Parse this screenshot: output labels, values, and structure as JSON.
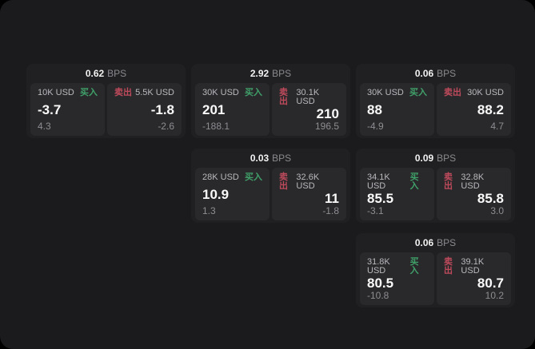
{
  "labels": {
    "bps_unit": "BPS",
    "buy": "买入",
    "sell": "卖出"
  },
  "colors": {
    "buy": "#40a06a",
    "sell": "#bf4a5c",
    "panel_bg": "#1b1b1d",
    "card_bg": "#202022",
    "subpanel_bg": "#29292b"
  },
  "cards": [
    {
      "grid": {
        "col": 1,
        "row": 1
      },
      "bps": "0.62",
      "buy": {
        "size": "10K USD",
        "value": "-3.7",
        "delta": "4.3"
      },
      "sell": {
        "size": "5.5K USD",
        "value": "-1.8",
        "delta": "-2.6"
      }
    },
    {
      "grid": {
        "col": 2,
        "row": 1
      },
      "bps": "2.92",
      "buy": {
        "size": "30K USD",
        "value": "201",
        "delta": "-188.1"
      },
      "sell": {
        "size": "30.1K USD",
        "value": "210",
        "delta": "196.5"
      }
    },
    {
      "grid": {
        "col": 3,
        "row": 1
      },
      "bps": "0.06",
      "buy": {
        "size": "30K USD",
        "value": "88",
        "delta": "-4.9"
      },
      "sell": {
        "size": "30K USD",
        "value": "88.2",
        "delta": "4.7"
      }
    },
    {
      "grid": {
        "col": 2,
        "row": 2
      },
      "bps": "0.03",
      "buy": {
        "size": "28K USD",
        "value": "10.9",
        "delta": "1.3"
      },
      "sell": {
        "size": "32.6K USD",
        "value": "11",
        "delta": "-1.8"
      }
    },
    {
      "grid": {
        "col": 3,
        "row": 2
      },
      "bps": "0.09",
      "buy": {
        "size": "34.1K USD",
        "value": "85.5",
        "delta": "-3.1"
      },
      "sell": {
        "size": "32.8K USD",
        "value": "85.8",
        "delta": "3.0"
      }
    },
    {
      "grid": {
        "col": 3,
        "row": 3
      },
      "bps": "0.06",
      "buy": {
        "size": "31.8K USD",
        "value": "80.5",
        "delta": "-10.8"
      },
      "sell": {
        "size": "39.1K USD",
        "value": "80.7",
        "delta": "10.2"
      }
    }
  ]
}
